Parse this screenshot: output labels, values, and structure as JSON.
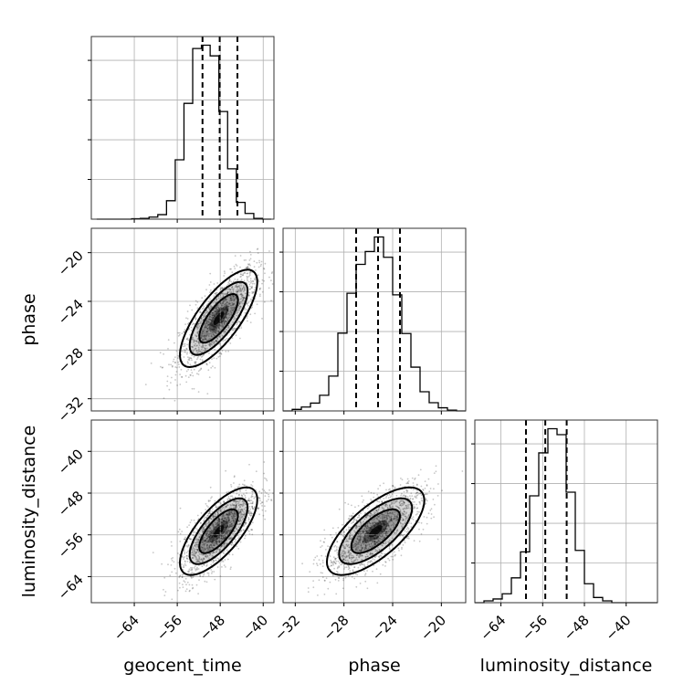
{
  "chart_data": {
    "type": "corner",
    "parameters": [
      "geocent_time",
      "phase",
      "luminosity_distance"
    ],
    "ranges": {
      "geocent_time": [
        -72,
        -38
      ],
      "phase": [
        -33,
        -18
      ],
      "luminosity_distance": [
        -69,
        -34
      ]
    },
    "ticks": {
      "geocent_time": [
        -64,
        -56,
        -48,
        -40
      ],
      "phase": [
        -32,
        -28,
        -24,
        -20
      ],
      "luminosity_distance": [
        -64,
        -56,
        -48,
        -40
      ]
    },
    "tick_labels": {
      "geocent_time": [
        "−64",
        "−56",
        "−48",
        "−40"
      ],
      "phase": [
        "−32",
        "−28",
        "−24",
        "−20"
      ],
      "luminosity_distance": [
        "−64",
        "−56",
        "−48",
        "−40"
      ]
    },
    "quantiles": {
      "geocent_time": [
        -51.3,
        -48.1,
        -44.8
      ],
      "phase": [
        -27.0,
        -25.2,
        -23.4
      ],
      "luminosity_distance": [
        -59.2,
        -55.5,
        -51.4
      ]
    },
    "histograms": {
      "geocent_time": {
        "edges": [
          -71,
          -69.375,
          -67.75,
          -66.125,
          -64.5,
          -62.875,
          -61.25,
          -59.625,
          -58,
          -56.375,
          -54.75,
          -53.125,
          -51.5,
          -49.875,
          -48.25,
          -46.625,
          -45,
          -43.375,
          -41.75,
          -40.125,
          -38.5
        ],
        "counts": [
          0,
          0,
          0,
          0,
          1,
          2,
          5,
          11,
          45,
          145,
          283,
          417,
          425,
          399,
          263,
          123,
          41,
          14,
          2,
          0
        ]
      },
      "phase": {
        "edges": [
          -33,
          -32.25,
          -31.5,
          -30.75,
          -30,
          -29.25,
          -28.5,
          -27.75,
          -27,
          -26.25,
          -25.5,
          -24.75,
          -24,
          -23.25,
          -22.5,
          -21.75,
          -21,
          -20.25,
          -19.5,
          -18.75,
          -18
        ],
        "counts": [
          0,
          4,
          10,
          20,
          40,
          89,
          199,
          301,
          375,
          408,
          445,
          393,
          297,
          198,
          112,
          49,
          21,
          8,
          2,
          0
        ]
      },
      "luminosity_distance": {
        "edges": [
          -69,
          -67.25,
          -65.5,
          -63.75,
          -62,
          -60.25,
          -58.5,
          -56.75,
          -55,
          -53.25,
          -51.5,
          -49.75,
          -48,
          -46.25,
          -44.5,
          -42.75,
          -41,
          -39.25,
          -37.5,
          -35.75,
          -34
        ],
        "counts": [
          0,
          5,
          10,
          24,
          67,
          137,
          288,
          404,
          469,
          453,
          298,
          141,
          51,
          14,
          5,
          0,
          0,
          0,
          0,
          0
        ]
      }
    },
    "pairs": [
      {
        "x": "geocent_time",
        "y": "phase",
        "mean": [
          -48.3,
          -25.4
        ],
        "sd": [
          3.6,
          2.0
        ],
        "corr": 0.75
      },
      {
        "x": "geocent_time",
        "y": "luminosity_distance",
        "mean": [
          -48.3,
          -55.3
        ],
        "sd": [
          3.6,
          4.2
        ],
        "corr": 0.72
      },
      {
        "x": "phase",
        "y": "luminosity_distance",
        "mean": [
          -25.4,
          -55.3
        ],
        "sd": [
          2.0,
          4.2
        ],
        "corr": 0.7
      }
    ],
    "contour_levels_sigma": [
      0.5,
      1.0,
      1.5,
      2.0
    ],
    "grid": true
  }
}
